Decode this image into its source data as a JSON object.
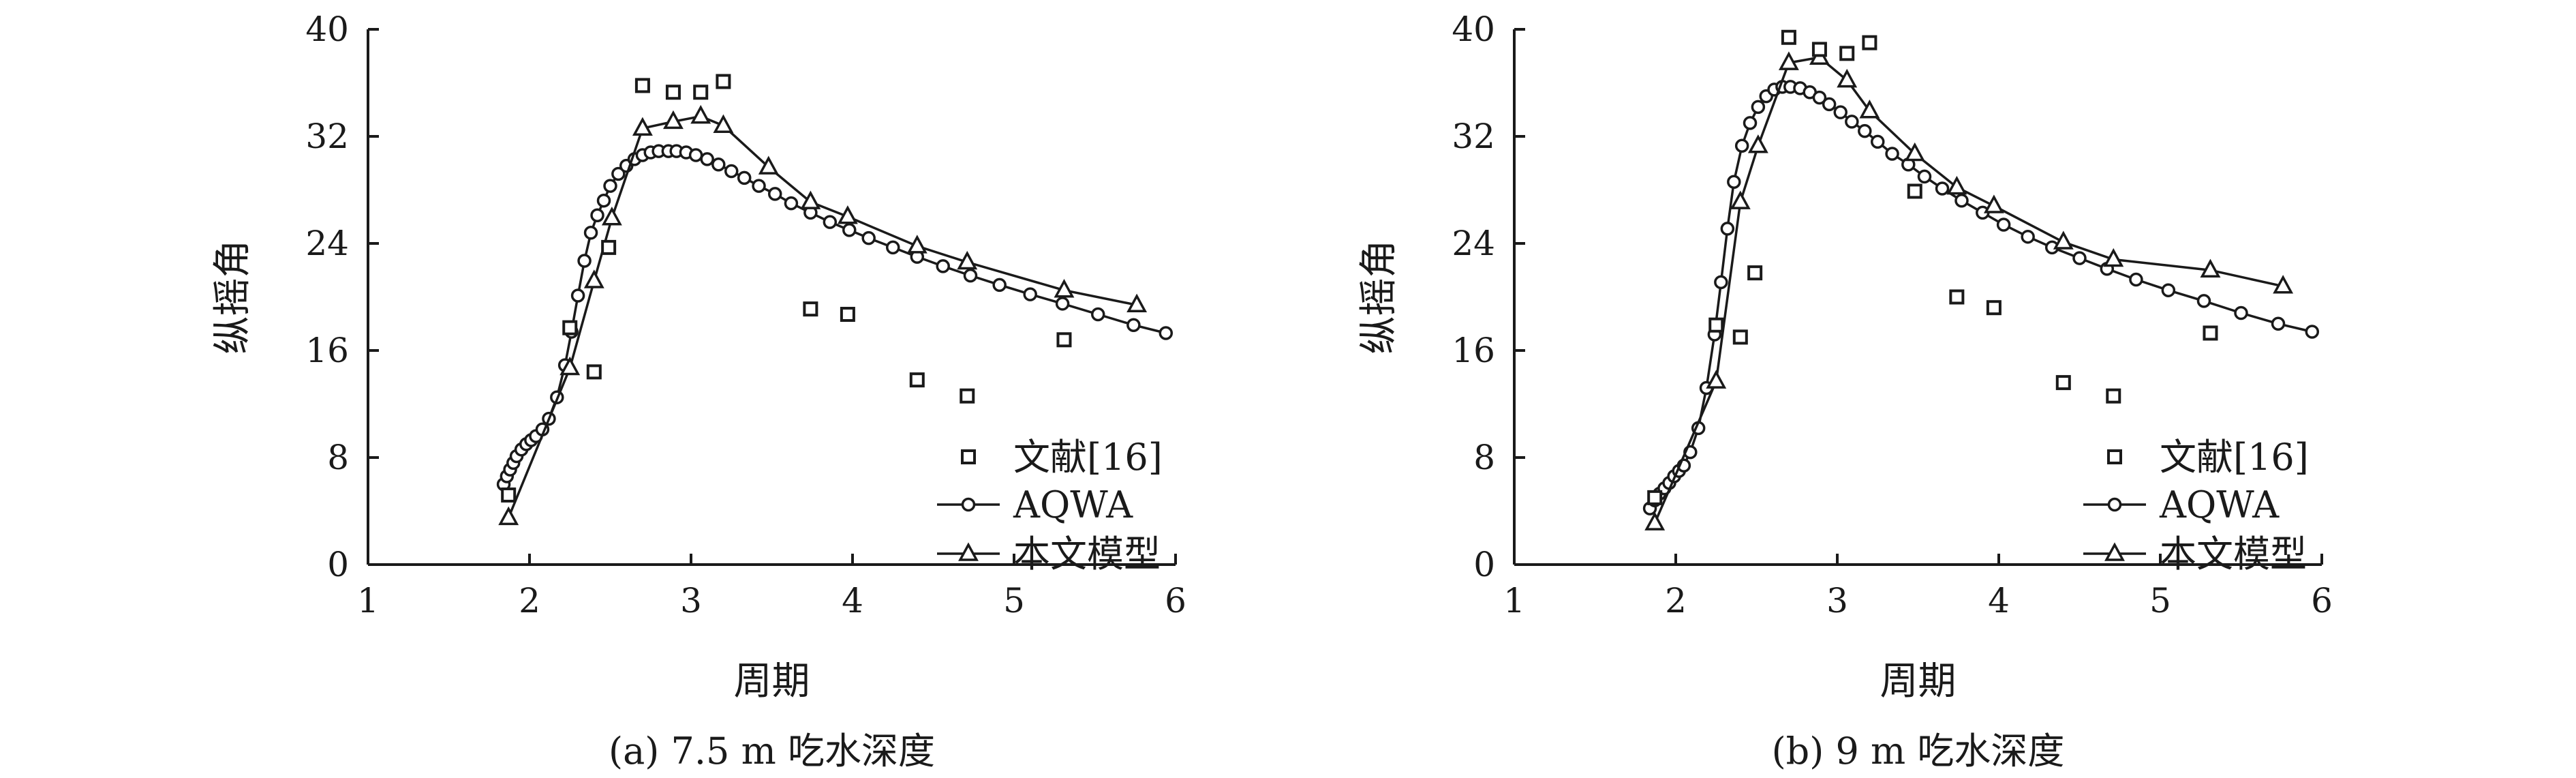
{
  "chart_data": [
    {
      "type": "scatter",
      "title": "",
      "caption": "(a) 7.5 m 吃水深度",
      "xlabel": "周期",
      "ylabel": "纵摇角",
      "xlim": [
        1,
        6
      ],
      "ylim": [
        0,
        40
      ],
      "xticks": [
        "1",
        "2",
        "3",
        "4",
        "5",
        "6"
      ],
      "yticks": [
        "0",
        "8",
        "16",
        "24",
        "32",
        "40"
      ],
      "grid": false,
      "legend_position": "bottom-right",
      "series": [
        {
          "name": "文献[16]",
          "marker": "square",
          "line": false,
          "x": [
            1.87,
            2.25,
            2.4,
            2.49,
            2.7,
            2.89,
            3.06,
            3.2,
            3.74,
            3.97,
            4.4,
            4.71,
            5.31
          ],
          "y": [
            5.2,
            17.7,
            14.4,
            23.7,
            35.8,
            35.3,
            35.3,
            36.1,
            19.1,
            18.7,
            13.8,
            12.6,
            16.8
          ]
        },
        {
          "name": "AQWA",
          "marker": "circle",
          "line": true,
          "x": [
            1.84,
            1.86,
            1.88,
            1.9,
            1.92,
            1.95,
            1.98,
            2.01,
            2.04,
            2.08,
            2.12,
            2.17,
            2.22,
            2.26,
            2.3,
            2.34,
            2.38,
            2.42,
            2.46,
            2.5,
            2.55,
            2.6,
            2.65,
            2.7,
            2.75,
            2.8,
            2.86,
            2.91,
            2.97,
            3.03,
            3.1,
            3.17,
            3.25,
            3.33,
            3.42,
            3.52,
            3.62,
            3.74,
            3.86,
            3.98,
            4.1,
            4.25,
            4.4,
            4.56,
            4.73,
            4.91,
            5.1,
            5.3,
            5.52,
            5.74,
            5.94
          ],
          "y": [
            6.0,
            6.6,
            7.1,
            7.6,
            8.1,
            8.6,
            9.0,
            9.3,
            9.6,
            10.1,
            10.9,
            12.5,
            14.9,
            17.4,
            20.1,
            22.7,
            24.8,
            26.1,
            27.2,
            28.3,
            29.2,
            29.8,
            30.3,
            30.6,
            30.8,
            30.9,
            30.9,
            30.9,
            30.8,
            30.6,
            30.3,
            29.9,
            29.4,
            28.9,
            28.3,
            27.7,
            27.0,
            26.3,
            25.6,
            25.0,
            24.4,
            23.7,
            23.0,
            22.3,
            21.6,
            20.9,
            20.2,
            19.5,
            18.7,
            17.9,
            17.3
          ]
        },
        {
          "name": "本文模型",
          "marker": "triangle",
          "line": true,
          "x": [
            1.87,
            2.25,
            2.4,
            2.51,
            2.7,
            2.89,
            3.06,
            3.2,
            3.48,
            3.74,
            3.97,
            4.4,
            4.71,
            5.31,
            5.76
          ],
          "y": [
            3.5,
            14.7,
            21.2,
            25.9,
            32.6,
            33.1,
            33.5,
            32.8,
            29.7,
            27.1,
            26.0,
            23.8,
            22.6,
            20.5,
            19.4
          ]
        }
      ]
    },
    {
      "type": "scatter",
      "title": "",
      "caption": "(b) 9 m 吃水深度",
      "xlabel": "周期",
      "ylabel": "纵摇角",
      "xlim": [
        1,
        6
      ],
      "ylim": [
        0,
        40
      ],
      "xticks": [
        "1",
        "2",
        "3",
        "4",
        "5",
        "6"
      ],
      "yticks": [
        "0",
        "8",
        "16",
        "24",
        "32",
        "40"
      ],
      "grid": false,
      "legend_position": "bottom-right",
      "series": [
        {
          "name": "文献[16]",
          "marker": "square",
          "line": false,
          "x": [
            1.87,
            2.25,
            2.4,
            2.49,
            2.7,
            2.89,
            3.06,
            3.2,
            3.48,
            3.74,
            3.97,
            4.4,
            4.71,
            5.31
          ],
          "y": [
            5.0,
            17.9,
            17.0,
            21.8,
            39.4,
            38.5,
            38.2,
            39.0,
            27.9,
            20.0,
            19.2,
            13.6,
            12.6,
            17.3
          ]
        },
        {
          "name": "AQWA",
          "marker": "circle",
          "line": true,
          "x": [
            1.84,
            1.87,
            1.9,
            1.93,
            1.96,
            1.99,
            2.02,
            2.05,
            2.09,
            2.14,
            2.19,
            2.24,
            2.28,
            2.32,
            2.36,
            2.41,
            2.46,
            2.51,
            2.56,
            2.61,
            2.66,
            2.71,
            2.77,
            2.83,
            2.89,
            2.95,
            3.02,
            3.09,
            3.17,
            3.25,
            3.34,
            3.44,
            3.54,
            3.65,
            3.77,
            3.9,
            4.03,
            4.18,
            4.33,
            4.5,
            4.67,
            4.85,
            5.05,
            5.27,
            5.5,
            5.73,
            5.94
          ],
          "y": [
            4.2,
            4.8,
            5.3,
            5.7,
            6.1,
            6.6,
            7.0,
            7.4,
            8.4,
            10.2,
            13.2,
            17.2,
            21.1,
            25.1,
            28.6,
            31.3,
            33.0,
            34.2,
            35.0,
            35.5,
            35.7,
            35.7,
            35.6,
            35.3,
            34.9,
            34.4,
            33.8,
            33.1,
            32.4,
            31.6,
            30.7,
            29.9,
            29.0,
            28.1,
            27.2,
            26.3,
            25.4,
            24.5,
            23.7,
            22.9,
            22.1,
            21.3,
            20.5,
            19.7,
            18.8,
            18.0,
            17.4
          ]
        },
        {
          "name": "本文模型",
          "marker": "triangle",
          "line": true,
          "x": [
            1.87,
            2.25,
            2.4,
            2.51,
            2.7,
            2.89,
            3.06,
            3.2,
            3.48,
            3.74,
            3.97,
            4.4,
            4.71,
            5.31,
            5.76
          ],
          "y": [
            3.1,
            13.7,
            27.1,
            31.3,
            37.5,
            37.9,
            36.2,
            33.9,
            30.7,
            28.2,
            26.8,
            24.1,
            22.8,
            22.0,
            20.8
          ]
        }
      ]
    }
  ]
}
